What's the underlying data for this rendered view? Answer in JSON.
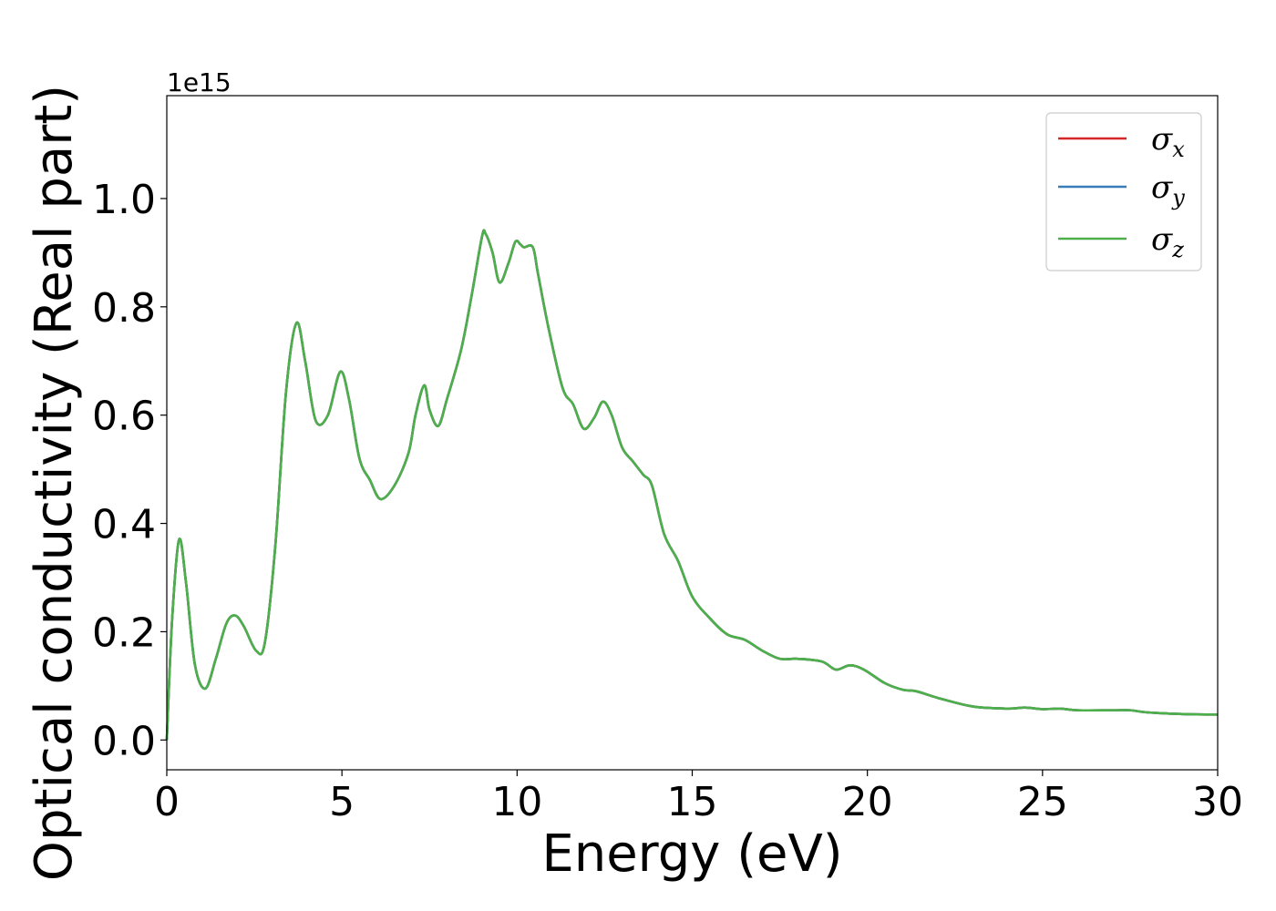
{
  "chart_data": {
    "type": "line",
    "xlabel": "Energy (eV)",
    "ylabel": "Optical conductivity (Real part)",
    "y_offset_text": "1e15",
    "y_scale_factor": 1000000000000000.0,
    "xlim": [
      0,
      30
    ],
    "ylim": [
      -0.055,
      1.19
    ],
    "x_ticks": [
      0,
      5,
      10,
      15,
      20,
      25,
      30
    ],
    "x_tick_labels": [
      "0",
      "5",
      "10",
      "15",
      "20",
      "25",
      "30"
    ],
    "y_ticks": [
      0.0,
      0.2,
      0.4,
      0.6,
      0.8,
      1.0
    ],
    "y_tick_labels": [
      "0.0",
      "0.2",
      "0.4",
      "0.6",
      "0.8",
      "1.0"
    ],
    "grid": false,
    "legend_position": "top-right",
    "x": [
      0,
      0.15,
      0.35,
      0.55,
      0.8,
      1.1,
      1.4,
      1.7,
      1.95,
      2.2,
      2.55,
      2.8,
      3.1,
      3.4,
      3.7,
      3.95,
      4.25,
      4.6,
      4.95,
      5.2,
      5.5,
      5.8,
      6.1,
      6.5,
      6.9,
      7.1,
      7.35,
      7.5,
      7.75,
      8.0,
      8.4,
      8.7,
      9.0,
      9.1,
      9.3,
      9.5,
      9.75,
      9.95,
      10.1,
      10.2,
      10.45,
      10.6,
      10.9,
      11.3,
      11.6,
      11.9,
      12.2,
      12.45,
      12.7,
      13.0,
      13.3,
      13.6,
      13.85,
      14.2,
      14.6,
      15.0,
      15.5,
      16.0,
      16.5,
      17.0,
      17.5,
      18.0,
      18.7,
      19.1,
      19.5,
      19.9,
      20.5,
      21.0,
      21.4,
      22.0,
      23.0,
      24.0,
      24.5,
      25.0,
      25.5,
      26.0,
      27.0,
      27.5,
      28.0,
      29.0,
      30.0
    ],
    "series": [
      {
        "name": "σx",
        "color": "#d62728",
        "values": [
          0.0,
          0.22,
          0.37,
          0.29,
          0.14,
          0.095,
          0.15,
          0.215,
          0.23,
          0.21,
          0.165,
          0.18,
          0.36,
          0.64,
          0.77,
          0.7,
          0.59,
          0.6,
          0.68,
          0.63,
          0.52,
          0.48,
          0.445,
          0.47,
          0.53,
          0.6,
          0.655,
          0.61,
          0.58,
          0.63,
          0.72,
          0.82,
          0.93,
          0.935,
          0.9,
          0.845,
          0.88,
          0.92,
          0.915,
          0.91,
          0.91,
          0.86,
          0.76,
          0.65,
          0.62,
          0.575,
          0.595,
          0.625,
          0.6,
          0.54,
          0.515,
          0.49,
          0.47,
          0.38,
          0.33,
          0.265,
          0.225,
          0.195,
          0.185,
          0.165,
          0.15,
          0.15,
          0.145,
          0.13,
          0.138,
          0.13,
          0.105,
          0.093,
          0.09,
          0.078,
          0.062,
          0.058,
          0.06,
          0.057,
          0.058,
          0.055,
          0.055,
          0.055,
          0.051,
          0.048,
          0.047
        ]
      },
      {
        "name": "σy",
        "color": "#377eb8",
        "values": [
          0.0,
          0.22,
          0.37,
          0.29,
          0.14,
          0.095,
          0.15,
          0.215,
          0.23,
          0.21,
          0.165,
          0.18,
          0.36,
          0.64,
          0.77,
          0.7,
          0.59,
          0.6,
          0.68,
          0.63,
          0.52,
          0.48,
          0.445,
          0.47,
          0.53,
          0.6,
          0.655,
          0.61,
          0.58,
          0.63,
          0.72,
          0.82,
          0.93,
          0.935,
          0.9,
          0.845,
          0.88,
          0.92,
          0.915,
          0.91,
          0.91,
          0.86,
          0.76,
          0.65,
          0.62,
          0.575,
          0.595,
          0.625,
          0.6,
          0.54,
          0.515,
          0.49,
          0.47,
          0.38,
          0.33,
          0.265,
          0.225,
          0.195,
          0.185,
          0.165,
          0.15,
          0.15,
          0.145,
          0.13,
          0.138,
          0.13,
          0.105,
          0.093,
          0.09,
          0.078,
          0.062,
          0.058,
          0.06,
          0.057,
          0.058,
          0.055,
          0.055,
          0.055,
          0.051,
          0.048,
          0.047
        ]
      },
      {
        "name": "σz",
        "color": "#4daf4a",
        "values": [
          0.0,
          0.22,
          0.37,
          0.29,
          0.14,
          0.095,
          0.15,
          0.215,
          0.23,
          0.21,
          0.165,
          0.18,
          0.36,
          0.64,
          0.77,
          0.7,
          0.59,
          0.6,
          0.68,
          0.63,
          0.52,
          0.48,
          0.445,
          0.47,
          0.53,
          0.6,
          0.655,
          0.61,
          0.58,
          0.63,
          0.72,
          0.82,
          0.93,
          0.935,
          0.9,
          0.845,
          0.88,
          0.92,
          0.915,
          0.91,
          0.91,
          0.86,
          0.76,
          0.65,
          0.62,
          0.575,
          0.595,
          0.625,
          0.6,
          0.54,
          0.515,
          0.49,
          0.47,
          0.38,
          0.33,
          0.265,
          0.225,
          0.195,
          0.185,
          0.165,
          0.15,
          0.15,
          0.145,
          0.13,
          0.138,
          0.13,
          0.105,
          0.093,
          0.09,
          0.078,
          0.062,
          0.058,
          0.06,
          0.057,
          0.058,
          0.055,
          0.055,
          0.055,
          0.051,
          0.048,
          0.047
        ]
      }
    ],
    "legend": [
      {
        "symbol": "σ",
        "sub": "x"
      },
      {
        "symbol": "σ",
        "sub": "y"
      },
      {
        "symbol": "σ",
        "sub": "z"
      }
    ]
  }
}
